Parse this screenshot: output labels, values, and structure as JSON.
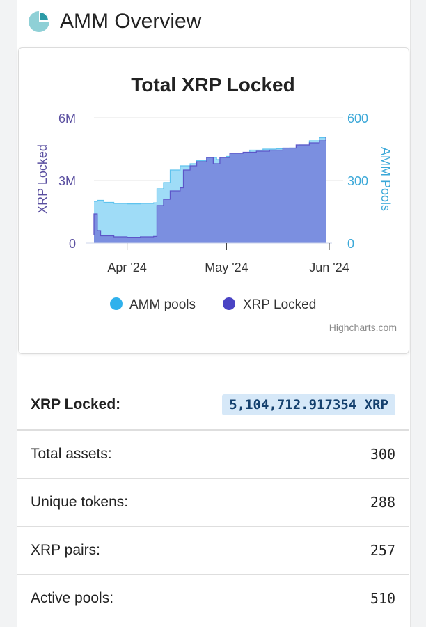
{
  "header": {
    "title": "AMM Overview"
  },
  "colors": {
    "amm_pools": "#9fdcf7",
    "amm_pools_legend": "#2fb1ec",
    "xrp_locked": "#7b8fe0",
    "xrp_locked_line": "#5c55c8",
    "xrp_locked_legend": "#4a43c4",
    "right_axis": "#3ba8d8",
    "left_axis": "#5a4fa0",
    "value_pill": "#d6e8f8"
  },
  "chart_data": {
    "type": "area",
    "title": "Total XRP Locked",
    "credits": "Highcharts.com",
    "x_ticks": [
      "Apr '24",
      "May '24",
      "Jun '24"
    ],
    "y_left": {
      "label": "XRP Locked",
      "ticks": [
        "0",
        "3M",
        "6M"
      ],
      "range": [
        0,
        6000000
      ]
    },
    "y_right": {
      "label": "AMM Pools",
      "ticks": [
        "0",
        "300",
        "600"
      ],
      "range": [
        0,
        600
      ]
    },
    "x_range": [
      "2024-03-22",
      "2024-06-01"
    ],
    "legend_position": "bottom",
    "series": [
      {
        "name": "AMM pools",
        "axis": "right",
        "points": [
          [
            "2024-03-22",
            200
          ],
          [
            "2024-03-23",
            205
          ],
          [
            "2024-03-25",
            195
          ],
          [
            "2024-03-28",
            190
          ],
          [
            "2024-04-01",
            188
          ],
          [
            "2024-04-05",
            190
          ],
          [
            "2024-04-09",
            193
          ],
          [
            "2024-04-10",
            260
          ],
          [
            "2024-04-12",
            290
          ],
          [
            "2024-04-14",
            350
          ],
          [
            "2024-04-17",
            370
          ],
          [
            "2024-04-20",
            380
          ],
          [
            "2024-04-22",
            395
          ],
          [
            "2024-04-25",
            410
          ],
          [
            "2024-04-28",
            400
          ],
          [
            "2024-05-01",
            415
          ],
          [
            "2024-05-04",
            430
          ],
          [
            "2024-05-08",
            445
          ],
          [
            "2024-05-12",
            450
          ],
          [
            "2024-05-16",
            452
          ],
          [
            "2024-05-20",
            455
          ],
          [
            "2024-05-23",
            470
          ],
          [
            "2024-05-26",
            490
          ],
          [
            "2024-05-29",
            505
          ],
          [
            "2024-05-31",
            510
          ]
        ]
      },
      {
        "name": "XRP Locked",
        "axis": "left",
        "points": [
          [
            "2024-03-22",
            400000
          ],
          [
            "2024-03-22",
            1400000
          ],
          [
            "2024-03-23",
            600000
          ],
          [
            "2024-03-24",
            350000
          ],
          [
            "2024-03-28",
            300000
          ],
          [
            "2024-04-01",
            280000
          ],
          [
            "2024-04-05",
            300000
          ],
          [
            "2024-04-09",
            320000
          ],
          [
            "2024-04-10",
            1800000
          ],
          [
            "2024-04-12",
            2100000
          ],
          [
            "2024-04-14",
            2500000
          ],
          [
            "2024-04-17",
            2650000
          ],
          [
            "2024-04-18",
            3500000
          ],
          [
            "2024-04-20",
            3700000
          ],
          [
            "2024-04-22",
            3900000
          ],
          [
            "2024-04-25",
            4100000
          ],
          [
            "2024-04-27",
            3800000
          ],
          [
            "2024-04-29",
            4100000
          ],
          [
            "2024-05-02",
            4300000
          ],
          [
            "2024-05-06",
            4350000
          ],
          [
            "2024-05-10",
            4400000
          ],
          [
            "2024-05-14",
            4450000
          ],
          [
            "2024-05-18",
            4550000
          ],
          [
            "2024-05-22",
            4700000
          ],
          [
            "2024-05-26",
            4800000
          ],
          [
            "2024-05-29",
            4900000
          ],
          [
            "2024-05-31",
            5100000
          ]
        ]
      }
    ]
  },
  "stats": [
    {
      "label": "XRP Locked:",
      "value": "5,104,712.917354 XRP"
    },
    {
      "label": "Total assets:",
      "value": "300"
    },
    {
      "label": "Unique tokens:",
      "value": "288"
    },
    {
      "label": "XRP pairs:",
      "value": "257"
    },
    {
      "label": "Active pools:",
      "value": "510"
    }
  ]
}
